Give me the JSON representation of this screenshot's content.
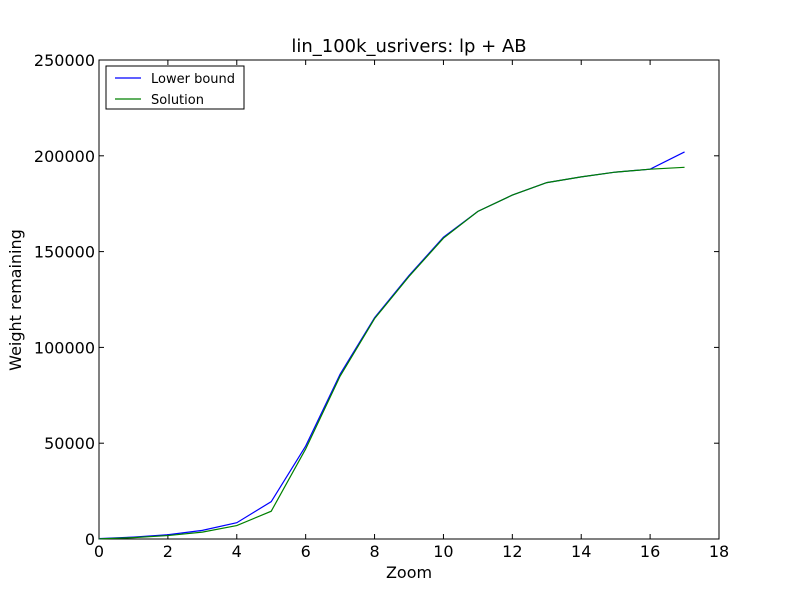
{
  "chart_data": {
    "type": "line",
    "title": "lin_100k_usrivers: lp + AB",
    "xlabel": "Zoom",
    "ylabel": "Weight remaining",
    "xlim": [
      0,
      18
    ],
    "ylim": [
      0,
      250000
    ],
    "x_ticks": [
      0,
      2,
      4,
      6,
      8,
      10,
      12,
      14,
      16,
      18
    ],
    "y_ticks": [
      0,
      50000,
      100000,
      150000,
      200000,
      250000
    ],
    "grid": false,
    "legend_position": "top-left",
    "x": [
      0,
      1,
      2,
      3,
      4,
      5,
      6,
      7,
      8,
      9,
      10,
      11,
      12,
      13,
      14,
      15,
      16,
      17
    ],
    "series": [
      {
        "name": "Lower bound",
        "color": "#0000ff",
        "values": [
          200,
          1000,
          2200,
          4500,
          8500,
          19500,
          48500,
          86000,
          115500,
          137500,
          157500,
          171000,
          179500,
          186000,
          189000,
          191500,
          193000,
          202000
        ]
      },
      {
        "name": "Solution",
        "color": "#008000",
        "values": [
          100,
          700,
          1800,
          3600,
          7000,
          14500,
          47000,
          85000,
          115000,
          137000,
          157000,
          171000,
          179500,
          186000,
          189000,
          191500,
          193000,
          194000
        ]
      }
    ]
  }
}
